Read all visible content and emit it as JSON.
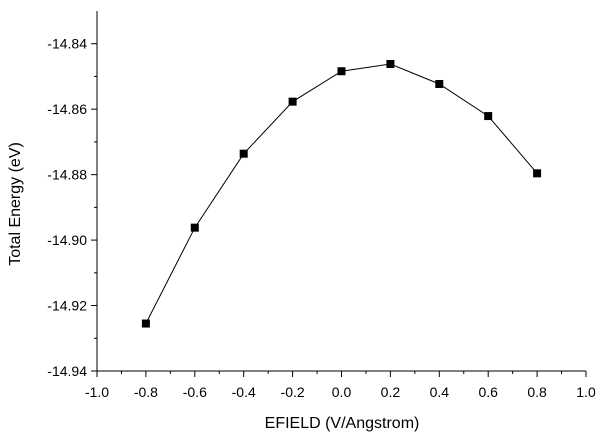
{
  "chart_data": {
    "type": "line",
    "title": "",
    "xlabel": "EFIELD (V/Angstrom)",
    "ylabel": "Total Energy (eV)",
    "xlim": [
      -1.0,
      1.0
    ],
    "ylim": [
      -14.94,
      -14.83
    ],
    "x_ticks": [
      "-1.0",
      "-0.8",
      "-0.6",
      "-0.4",
      "-0.2",
      "0.0",
      "0.2",
      "0.4",
      "0.6",
      "0.8",
      "1.0"
    ],
    "y_ticks": [
      "-14.84",
      "-14.86",
      "-14.88",
      "-14.90",
      "-14.92",
      "-14.94"
    ],
    "grid": false,
    "legend": "none",
    "marker": "filled-square",
    "line_color": "#000000",
    "series": [
      {
        "x": [
          -0.8,
          -0.6,
          -0.4,
          -0.2,
          0.0,
          0.2,
          0.4,
          0.6,
          0.8
        ],
        "y": [
          -14.9255,
          -14.8962,
          -14.8736,
          -14.8577,
          -14.8484,
          -14.8462,
          -14.8523,
          -14.8621,
          -14.8796
        ]
      }
    ]
  }
}
